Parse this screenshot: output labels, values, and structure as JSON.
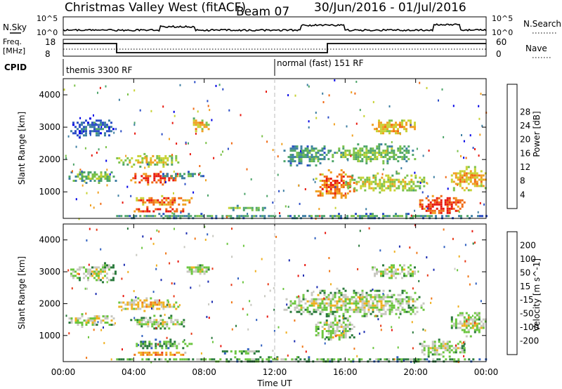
{
  "header": {
    "station": "Christmas Valley West (fitACF)",
    "beam": "Beam 07",
    "date_range": "30/Jun/2016 - 01/Jul/2016"
  },
  "noise_panel": {
    "left_label": "N.Sky",
    "right_label": "N.Search",
    "left_ticks": [
      "10^5",
      "10^0"
    ],
    "right_ticks": [
      "10^5",
      "10^0"
    ]
  },
  "freq_panel": {
    "left_label_line1": "Freq.",
    "left_label_line2": "[MHz]",
    "left_ticks": [
      "18",
      "8"
    ],
    "right_label": "Nave",
    "right_ticks": [
      "60",
      "0"
    ]
  },
  "cpid": {
    "label": "CPID",
    "modes": [
      {
        "name": "themis 3300 RF",
        "start_hour": 0
      },
      {
        "name": "normal (fast) 151 RF",
        "start_hour": 12
      }
    ]
  },
  "chart_data": [
    {
      "type": "heatmap",
      "name": "power",
      "xlabel": "",
      "ylabel": "Slant Range [km]",
      "xlim": [
        0,
        24
      ],
      "ylim": [
        180,
        4500
      ],
      "y_ticks": [
        1000,
        2000,
        3000,
        4000
      ],
      "colorbar": {
        "label": "Power [dB]",
        "ticks": [
          "4",
          "8",
          "12",
          "16",
          "20",
          "24",
          "28"
        ],
        "colors": [
          "#0000e6",
          "#2a4cc6",
          "#3e7fa3",
          "#4ea56a",
          "#7cc24a",
          "#c7d233",
          "#f0a020",
          "#f06a14",
          "#e81a10"
        ]
      },
      "regions": [
        {
          "t0": 0.4,
          "t1": 3.0,
          "r0": 2700,
          "r1": 3300,
          "level": 2
        },
        {
          "t0": 0.3,
          "t1": 3.0,
          "r0": 1300,
          "r1": 1700,
          "level": 4
        },
        {
          "t0": 3.0,
          "t1": 6.5,
          "r0": 1800,
          "r1": 2200,
          "level": 5
        },
        {
          "t0": 3.8,
          "t1": 6.6,
          "r0": 1250,
          "r1": 1650,
          "level": 8
        },
        {
          "t0": 5.5,
          "t1": 8.0,
          "r0": 1450,
          "r1": 1650,
          "level": 3
        },
        {
          "t0": 4.0,
          "t1": 7.3,
          "r0": 600,
          "r1": 900,
          "level": 7
        },
        {
          "t0": 4.0,
          "t1": 7.0,
          "r0": 380,
          "r1": 560,
          "level": 8
        },
        {
          "t0": 7.0,
          "t1": 8.2,
          "r0": 2900,
          "r1": 3300,
          "level": 6
        },
        {
          "t0": 9.0,
          "t1": 11.5,
          "r0": 450,
          "r1": 600,
          "level": 4
        },
        {
          "t0": 3.0,
          "t1": 12.0,
          "r0": 200,
          "r1": 350,
          "level": 3
        },
        {
          "t0": 12.5,
          "t1": 15.0,
          "r0": 1800,
          "r1": 2500,
          "level": 3
        },
        {
          "t0": 14.3,
          "t1": 16.5,
          "r0": 800,
          "r1": 1700,
          "level": 7
        },
        {
          "t0": 15.0,
          "t1": 20.0,
          "r0": 1900,
          "r1": 2500,
          "level": 4
        },
        {
          "t0": 16.0,
          "t1": 20.5,
          "r0": 1000,
          "r1": 1600,
          "level": 5
        },
        {
          "t0": 17.5,
          "t1": 20.0,
          "r0": 2800,
          "r1": 3300,
          "level": 6
        },
        {
          "t0": 20.2,
          "t1": 22.8,
          "r0": 350,
          "r1": 900,
          "level": 8
        },
        {
          "t0": 22.0,
          "t1": 24.0,
          "r0": 1000,
          "r1": 1800,
          "level": 6
        },
        {
          "t0": 12.0,
          "t1": 24.0,
          "r0": 200,
          "r1": 350,
          "level": 3
        }
      ]
    },
    {
      "type": "heatmap",
      "name": "velocity",
      "xlabel": "Time UT",
      "ylabel": "Slant Range [km]",
      "xlim": [
        0,
        24
      ],
      "ylim": [
        180,
        4500
      ],
      "x_ticks": [
        "00:00",
        "04:00",
        "08:00",
        "12:00",
        "16:00",
        "20:00",
        "00:00"
      ],
      "y_ticks": [
        1000,
        2000,
        3000,
        4000
      ],
      "colorbar": {
        "label": "Velocity [m s^-1]",
        "ticks": [
          "200",
          "100",
          "50",
          "15",
          "-15",
          "-50",
          "-100",
          "-200"
        ],
        "colors": [
          "#1a2bb0",
          "#3060c0",
          "#2a7a3c",
          "#6cc640",
          "#c8c8c0",
          "#f0b020",
          "#f07818",
          "#e83a18",
          "#e81810"
        ]
      },
      "regions": [
        {
          "t0": 0.4,
          "t1": 3.0,
          "r0": 2700,
          "r1": 3300,
          "level": 4
        },
        {
          "t0": 0.3,
          "t1": 3.0,
          "r0": 1300,
          "r1": 1700,
          "level": 4
        },
        {
          "t0": 3.0,
          "t1": 6.5,
          "r0": 1800,
          "r1": 2200,
          "level": 5
        },
        {
          "t0": 3.8,
          "t1": 7.0,
          "r0": 1250,
          "r1": 1650,
          "level": 4
        },
        {
          "t0": 4.0,
          "t1": 7.3,
          "r0": 600,
          "r1": 900,
          "level": 3
        },
        {
          "t0": 4.0,
          "t1": 7.0,
          "r0": 380,
          "r1": 560,
          "level": 6
        },
        {
          "t0": 7.0,
          "t1": 8.2,
          "r0": 2900,
          "r1": 3300,
          "level": 4
        },
        {
          "t0": 9.0,
          "t1": 11.5,
          "r0": 450,
          "r1": 600,
          "level": 3
        },
        {
          "t0": 3.0,
          "t1": 24.0,
          "r0": 200,
          "r1": 350,
          "level": 3
        },
        {
          "t0": 12.5,
          "t1": 20.5,
          "r0": 1600,
          "r1": 2500,
          "level": 4
        },
        {
          "t0": 14.3,
          "t1": 16.5,
          "r0": 800,
          "r1": 1700,
          "level": 4
        },
        {
          "t0": 17.5,
          "t1": 20.0,
          "r0": 2800,
          "r1": 3300,
          "level": 4
        },
        {
          "t0": 20.2,
          "t1": 22.8,
          "r0": 350,
          "r1": 900,
          "level": 4
        },
        {
          "t0": 22.0,
          "t1": 24.0,
          "r0": 1000,
          "r1": 1800,
          "level": 4
        }
      ]
    }
  ]
}
